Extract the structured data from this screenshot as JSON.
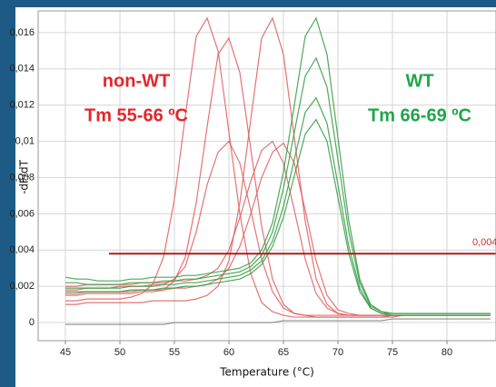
{
  "chart_data": {
    "type": "line",
    "xlabel": "Temperature (°C)",
    "ylabel": "-dF/dT",
    "x": [
      45,
      46,
      47,
      48,
      49,
      50,
      51,
      52,
      53,
      54,
      55,
      56,
      57,
      58,
      59,
      60,
      61,
      62,
      63,
      64,
      65,
      66,
      67,
      68,
      69,
      70,
      71,
      72,
      73,
      74,
      75,
      76,
      77,
      78,
      79,
      80,
      81,
      82,
      83,
      84
    ],
    "xlim": [
      42.5,
      84.5
    ],
    "xticks": [
      45,
      50,
      55,
      60,
      65,
      70,
      75,
      80
    ],
    "ylim": [
      -0.001,
      0.0172
    ],
    "yticks": [
      0,
      {
        "value": 0.002,
        "label": "0,002"
      },
      {
        "value": 0.004,
        "label": "0,004"
      },
      {
        "value": 0.006,
        "label": "0,006"
      },
      {
        "value": 0.008,
        "label": "0,008"
      },
      {
        "value": 0.01,
        "label": "0,01"
      },
      {
        "value": 0.012,
        "label": "0,012"
      },
      {
        "value": 0.014,
        "label": "0,014"
      },
      {
        "value": 0.016,
        "label": "0,016"
      }
    ],
    "grid": true,
    "threshold": {
      "value": 0.0038,
      "label": "0,004",
      "x_start": 49,
      "color": "#b01c1c"
    },
    "annotations": [
      {
        "text": "non-WT",
        "color": "#e4262b"
      },
      {
        "text": "Tm 55-66 ºC",
        "color": "#e4262b"
      },
      {
        "text": "WT",
        "color": "#1fa64a"
      },
      {
        "text": "Tm 66-69 ºC",
        "color": "#1fa64a"
      }
    ],
    "series": [
      {
        "color": "#e05a5a",
        "values": [
          0.0012,
          0.0012,
          0.0013,
          0.0013,
          0.0013,
          0.0013,
          0.0014,
          0.0016,
          0.0021,
          0.0036,
          0.0068,
          0.0114,
          0.0158,
          0.0168,
          0.015,
          0.0105,
          0.006,
          0.0027,
          0.0011,
          0.0006,
          0.0004,
          0.0003,
          0.0003,
          0.0003,
          0.0003,
          0.0003,
          0.0003,
          0.0003,
          0.0003,
          0.0003,
          0.0004,
          0.0004,
          0.0004,
          0.0004,
          0.0004,
          0.0004,
          0.0004,
          0.0004,
          0.0004,
          0.0004
        ]
      },
      {
        "color": "#e05a5a",
        "values": [
          0.0015,
          0.0015,
          0.0016,
          0.0016,
          0.0016,
          0.0016,
          0.0016,
          0.0017,
          0.0017,
          0.0018,
          0.0023,
          0.0036,
          0.0066,
          0.0108,
          0.0148,
          0.0157,
          0.0138,
          0.0096,
          0.0053,
          0.0024,
          0.001,
          0.0005,
          0.0004,
          0.0003,
          0.0003,
          0.0003,
          0.0003,
          0.0003,
          0.0003,
          0.0003,
          0.0003,
          0.0004,
          0.0004,
          0.0004,
          0.0004,
          0.0004,
          0.0004,
          0.0004,
          0.0004,
          0.0004
        ]
      },
      {
        "color": "#e05a5a",
        "values": [
          0.001,
          0.001,
          0.0011,
          0.0011,
          0.0011,
          0.0011,
          0.0011,
          0.0011,
          0.0012,
          0.0012,
          0.0012,
          0.0012,
          0.0013,
          0.0015,
          0.002,
          0.0034,
          0.0066,
          0.0112,
          0.0157,
          0.0168,
          0.0148,
          0.0102,
          0.0056,
          0.0024,
          0.001,
          0.0005,
          0.0004,
          0.0004,
          0.0004,
          0.0004,
          0.0004,
          0.0004,
          0.0004,
          0.0004,
          0.0004,
          0.0004,
          0.0004,
          0.0004,
          0.0004,
          0.0004
        ]
      },
      {
        "color": "#e05a5a",
        "values": [
          0.0018,
          0.0018,
          0.0019,
          0.0019,
          0.0019,
          0.002,
          0.002,
          0.002,
          0.0021,
          0.0021,
          0.0024,
          0.0031,
          0.005,
          0.0076,
          0.0094,
          0.01,
          0.0088,
          0.0062,
          0.0035,
          0.0017,
          0.0008,
          0.0005,
          0.0004,
          0.0004,
          0.0004,
          0.0004,
          0.0004,
          0.0004,
          0.0004,
          0.0004,
          0.0004,
          0.0004,
          0.0004,
          0.0004,
          0.0004,
          0.0004,
          0.0004,
          0.0004,
          0.0004,
          0.0004
        ]
      },
      {
        "color": "#e05a5a",
        "values": [
          0.002,
          0.002,
          0.0021,
          0.0021,
          0.0021,
          0.0021,
          0.0021,
          0.0022,
          0.0022,
          0.0022,
          0.0023,
          0.0023,
          0.0024,
          0.0026,
          0.003,
          0.004,
          0.0058,
          0.0078,
          0.0095,
          0.01,
          0.0088,
          0.0062,
          0.0035,
          0.0016,
          0.0008,
          0.0005,
          0.0004,
          0.0004,
          0.0004,
          0.0004,
          0.0004,
          0.0004,
          0.0004,
          0.0004,
          0.0004,
          0.0004,
          0.0004,
          0.0004,
          0.0004,
          0.0004
        ]
      },
      {
        "color": "#e05a5a",
        "values": [
          0.0016,
          0.0016,
          0.0017,
          0.0017,
          0.0017,
          0.0017,
          0.0017,
          0.0018,
          0.0018,
          0.0018,
          0.0019,
          0.0019,
          0.002,
          0.0021,
          0.0024,
          0.003,
          0.0042,
          0.006,
          0.008,
          0.0094,
          0.0099,
          0.0088,
          0.0062,
          0.0034,
          0.0015,
          0.0007,
          0.0005,
          0.0004,
          0.0004,
          0.0004,
          0.0004,
          0.0004,
          0.0004,
          0.0004,
          0.0004,
          0.0004,
          0.0004,
          0.0004,
          0.0004,
          0.0004
        ]
      },
      {
        "color": "#2e9a3e",
        "values": [
          0.0025,
          0.0024,
          0.0024,
          0.0023,
          0.0023,
          0.0023,
          0.0024,
          0.0024,
          0.0025,
          0.0025,
          0.0025,
          0.0026,
          0.0026,
          0.0027,
          0.0028,
          0.0029,
          0.003,
          0.0033,
          0.004,
          0.0055,
          0.0083,
          0.012,
          0.0158,
          0.0168,
          0.0148,
          0.0102,
          0.0056,
          0.0024,
          0.001,
          0.0006,
          0.0005,
          0.0005,
          0.0005,
          0.0005,
          0.0005,
          0.0005,
          0.0005,
          0.0005,
          0.0005,
          0.0005
        ]
      },
      {
        "color": "#2e9a3e",
        "values": [
          0.0022,
          0.0022,
          0.0021,
          0.0021,
          0.0021,
          0.0021,
          0.0022,
          0.0022,
          0.0022,
          0.0023,
          0.0023,
          0.0024,
          0.0024,
          0.0025,
          0.0026,
          0.0027,
          0.0028,
          0.0031,
          0.0037,
          0.005,
          0.0074,
          0.0105,
          0.0136,
          0.0146,
          0.013,
          0.009,
          0.005,
          0.0022,
          0.0009,
          0.0006,
          0.0005,
          0.0005,
          0.0005,
          0.0005,
          0.0005,
          0.0005,
          0.0005,
          0.0005,
          0.0005,
          0.0005
        ]
      },
      {
        "color": "#2e9a3e",
        "values": [
          0.0019,
          0.0019,
          0.0019,
          0.0019,
          0.0019,
          0.0019,
          0.002,
          0.002,
          0.002,
          0.0021,
          0.0021,
          0.0022,
          0.0022,
          0.0023,
          0.0024,
          0.0025,
          0.0026,
          0.0029,
          0.0034,
          0.0045,
          0.0064,
          0.009,
          0.0116,
          0.0124,
          0.011,
          0.0076,
          0.0042,
          0.0019,
          0.0008,
          0.0005,
          0.0005,
          0.0005,
          0.0005,
          0.0005,
          0.0005,
          0.0005,
          0.0005,
          0.0005,
          0.0005,
          0.0005
        ]
      },
      {
        "color": "#2e9a3e",
        "values": [
          0.0017,
          0.0017,
          0.0017,
          0.0017,
          0.0017,
          0.0017,
          0.0018,
          0.0018,
          0.0018,
          0.0019,
          0.0019,
          0.002,
          0.002,
          0.0021,
          0.0022,
          0.0023,
          0.0024,
          0.0027,
          0.0032,
          0.0042,
          0.0058,
          0.0081,
          0.0104,
          0.0112,
          0.01,
          0.0069,
          0.0038,
          0.0017,
          0.0008,
          0.0005,
          0.0004,
          0.0004,
          0.0004,
          0.0004,
          0.0004,
          0.0004,
          0.0004,
          0.0004,
          0.0004,
          0.0004
        ]
      },
      {
        "color": "#777777",
        "values": [
          -0.0001,
          -0.0001,
          -0.0001,
          -0.0001,
          -0.0001,
          -0.0001,
          -0.0001,
          -0.0001,
          -0.0001,
          -0.0001,
          0,
          0,
          0,
          0,
          0,
          0,
          0,
          0,
          0,
          0,
          0.0001,
          0.0001,
          0.0001,
          0.0001,
          0.0001,
          0.0001,
          0.0001,
          0.0001,
          0.0001,
          0.0001,
          0.0002,
          0.0002,
          0.0002,
          0.0002,
          0.0002,
          0.0002,
          0.0002,
          0.0002,
          0.0002,
          0.0002
        ]
      }
    ]
  }
}
